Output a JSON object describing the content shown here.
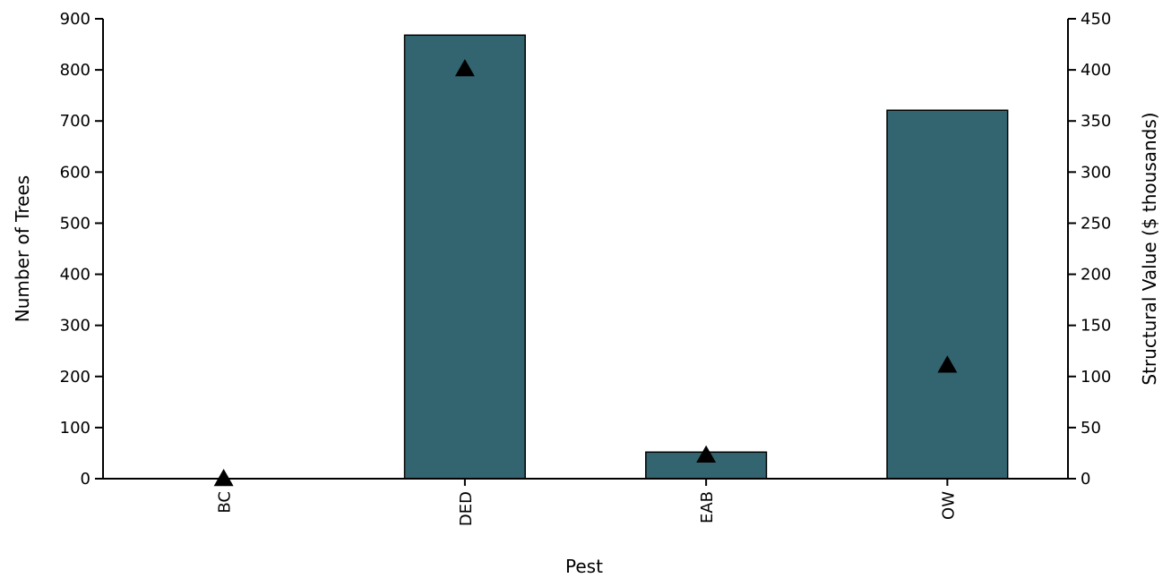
{
  "chart_data": {
    "type": "bar",
    "categories": [
      "BC",
      "DED",
      "EAB",
      "OW"
    ],
    "series": [
      {
        "values": [
          0,
          868,
          52,
          721
        ],
        "axis": "left",
        "style": "bar",
        "color": "#326570"
      },
      {
        "values": [
          0,
          401,
          23,
          111
        ],
        "axis": "right",
        "style": "triangle-marker",
        "color": "#000000"
      }
    ],
    "xlabel": "Pest",
    "ylabel": "Number of Trees",
    "y2label": "Structural Value ($ thousands)",
    "ylim": [
      0,
      900
    ],
    "y2lim": [
      0,
      450
    ],
    "yticks": [
      "0",
      "100",
      "200",
      "300",
      "400",
      "500",
      "600",
      "700",
      "800",
      "900"
    ],
    "y2ticks": [
      "0",
      "50",
      "100",
      "150",
      "200",
      "250",
      "300",
      "350",
      "400",
      "450"
    ],
    "grid": false,
    "legend": "none"
  }
}
